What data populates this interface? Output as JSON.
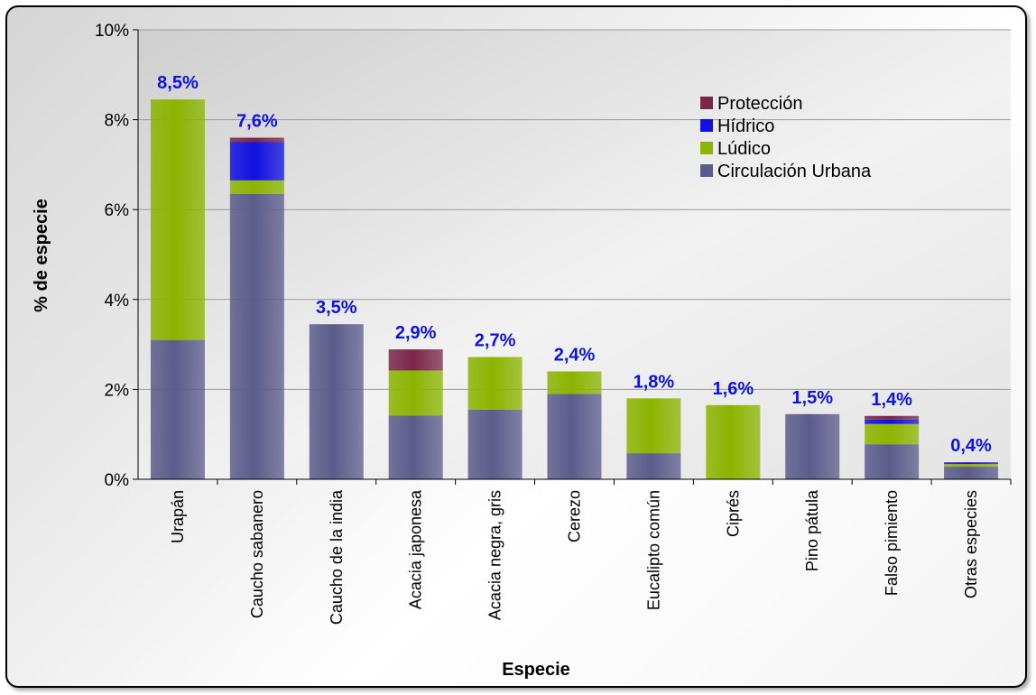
{
  "chart_data": {
    "type": "bar",
    "stacked": true,
    "xlabel": "Especie",
    "ylabel": "% de especie",
    "ylim": [
      0,
      10
    ],
    "yticks": [
      "0%",
      "2%",
      "4%",
      "6%",
      "8%",
      "10%"
    ],
    "grid": true,
    "legend_position": "top-right",
    "categories": [
      "Urapán",
      "Caucho sabanero",
      "Caucho de la india",
      "Acacia japonesa",
      "Acacia negra, gris",
      "Cerezo",
      "Eucalipto común",
      "Ciprés",
      "Pino pátula",
      "Falso pimiento",
      "Otras especies"
    ],
    "totals_labels": [
      "8,5%",
      "7,6%",
      "3,5%",
      "2,9%",
      "2,7%",
      "2,4%",
      "1,8%",
      "1,6%",
      "1,5%",
      "1,4%",
      "0,4%"
    ],
    "series": [
      {
        "name": "Circulación Urbana",
        "color": "#5c5c8c",
        "values": [
          3.1,
          6.35,
          3.45,
          1.42,
          1.55,
          1.9,
          0.58,
          0,
          1.45,
          0.78,
          0.28
        ]
      },
      {
        "name": "Lúdico",
        "color": "#8cb400",
        "values": [
          5.35,
          0.3,
          0,
          1.0,
          1.17,
          0.5,
          1.22,
          1.65,
          0,
          0.45,
          0.06
        ]
      },
      {
        "name": "Hídrico",
        "color": "#1010e0",
        "values": [
          0,
          0.85,
          0,
          0,
          0,
          0,
          0,
          0,
          0,
          0.1,
          0.03
        ]
      },
      {
        "name": "Protección",
        "color": "#7a2748",
        "values": [
          0,
          0.1,
          0,
          0.47,
          0,
          0,
          0,
          0,
          0,
          0.08,
          0.01
        ]
      }
    ]
  }
}
